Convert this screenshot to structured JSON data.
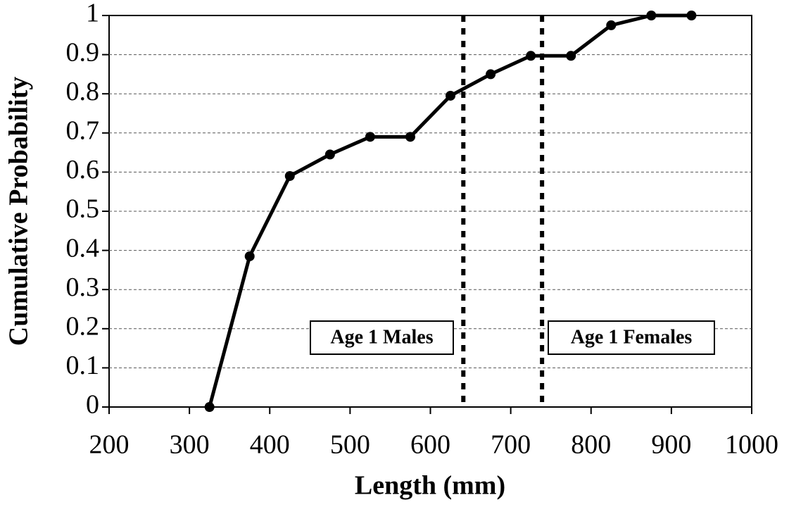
{
  "chart_data": {
    "type": "line",
    "x_label": "Length (mm)",
    "y_label": "Cumulative Probability",
    "series": [
      {
        "color": "#000000",
        "x": [
          325,
          375,
          425,
          475,
          525,
          575,
          625,
          675,
          725,
          775,
          825,
          875,
          925
        ],
        "values": [
          0,
          0.385,
          0.59,
          0.645,
          0.69,
          0.69,
          0.795,
          0.85,
          0.897,
          0.897,
          0.975,
          1,
          1
        ]
      }
    ],
    "xlim": [
      200,
      1000
    ],
    "xticks": [
      200,
      300,
      400,
      500,
      600,
      700,
      800,
      900,
      1000
    ],
    "ylim": [
      0,
      1
    ],
    "yticks": [
      0,
      0.1,
      0.2,
      0.3,
      0.4,
      0.5,
      0.6,
      0.7,
      0.8,
      0.9,
      1
    ],
    "grid": true,
    "reference_lines": [
      641,
      739
    ],
    "annotations": [
      "Age 1 Males",
      "Age 1 Females"
    ]
  }
}
